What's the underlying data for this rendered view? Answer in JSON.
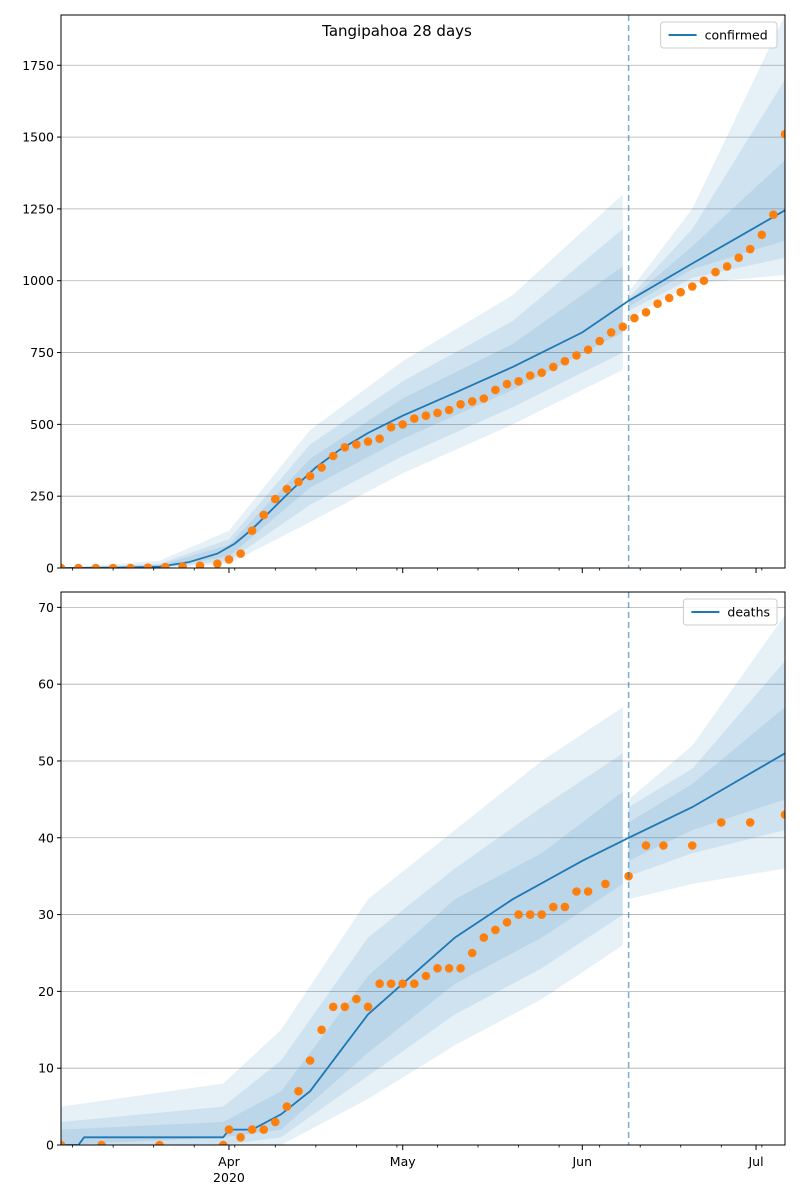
{
  "figure": {
    "title": "Tangipahoa 28 days"
  },
  "colors": {
    "model_line": "#1f77b4",
    "observed_points": "#ff7f0e",
    "band": "#1f77b4",
    "forecast_marker": "#1f77b4",
    "grid": "#b0b0b0"
  },
  "chart_data": [
    {
      "type": "line",
      "name": "confirmed-panel",
      "x_axis": {
        "type": "date",
        "range": [
          "2020-03-03",
          "2020-07-06"
        ],
        "major_ticks": [
          {
            "date": "2020-04-01",
            "label": "Apr"
          },
          {
            "date": "2020-05-01",
            "label": "May"
          },
          {
            "date": "2020-06-01",
            "label": "Jun"
          },
          {
            "date": "2020-07-01",
            "label": "Jul"
          }
        ],
        "year_label": "",
        "tick_labels_visible": false
      },
      "y_axis": {
        "range": [
          0,
          1925
        ],
        "ticks": [
          0,
          250,
          500,
          750,
          1000,
          1250,
          1500,
          1750
        ],
        "tick_labels": [
          "0",
          "250",
          "500",
          "750",
          "1000",
          "1250",
          "1500",
          "1750"
        ]
      },
      "grid": "horizontal",
      "legend": {
        "position": "top-right",
        "entries": [
          "confirmed"
        ]
      },
      "forecast_start": "2020-06-09",
      "series": [
        {
          "name": "confirmed",
          "kind": "line",
          "x": [
            "2020-03-03",
            "2020-03-13",
            "2020-03-20",
            "2020-03-25",
            "2020-03-30",
            "2020-04-02",
            "2020-04-05",
            "2020-04-08",
            "2020-04-12",
            "2020-04-16",
            "2020-04-20",
            "2020-04-25",
            "2020-05-01",
            "2020-05-10",
            "2020-05-20",
            "2020-06-01",
            "2020-06-09",
            "2020-06-20",
            "2020-07-06"
          ],
          "y": [
            0,
            1,
            5,
            20,
            50,
            85,
            135,
            195,
            275,
            350,
            410,
            470,
            530,
            610,
            700,
            820,
            930,
            1060,
            1245
          ]
        },
        {
          "name": "observed",
          "kind": "scatter",
          "x": [
            "2020-03-03",
            "2020-03-06",
            "2020-03-09",
            "2020-03-12",
            "2020-03-15",
            "2020-03-18",
            "2020-03-21",
            "2020-03-24",
            "2020-03-27",
            "2020-03-30",
            "2020-04-01",
            "2020-04-03",
            "2020-04-05",
            "2020-04-07",
            "2020-04-09",
            "2020-04-11",
            "2020-04-13",
            "2020-04-15",
            "2020-04-17",
            "2020-04-19",
            "2020-04-21",
            "2020-04-23",
            "2020-04-25",
            "2020-04-27",
            "2020-04-29",
            "2020-05-01",
            "2020-05-03",
            "2020-05-05",
            "2020-05-07",
            "2020-05-09",
            "2020-05-11",
            "2020-05-13",
            "2020-05-15",
            "2020-05-17",
            "2020-05-19",
            "2020-05-21",
            "2020-05-23",
            "2020-05-25",
            "2020-05-27",
            "2020-05-29",
            "2020-05-31",
            "2020-06-02",
            "2020-06-04",
            "2020-06-06",
            "2020-06-08",
            "2020-06-10",
            "2020-06-12",
            "2020-06-14",
            "2020-06-16",
            "2020-06-18",
            "2020-06-20",
            "2020-06-22",
            "2020-06-24",
            "2020-06-26",
            "2020-06-28",
            "2020-06-30",
            "2020-07-02",
            "2020-07-04",
            "2020-07-06"
          ],
          "y": [
            0,
            0,
            0,
            0,
            0,
            1,
            3,
            5,
            8,
            15,
            30,
            50,
            130,
            185,
            240,
            275,
            300,
            320,
            350,
            390,
            420,
            430,
            440,
            450,
            490,
            500,
            520,
            530,
            540,
            550,
            570,
            580,
            590,
            620,
            640,
            650,
            670,
            680,
            700,
            720,
            740,
            760,
            790,
            820,
            840,
            870,
            890,
            920,
            940,
            960,
            980,
            1000,
            1030,
            1050,
            1080,
            1110,
            1160,
            1230,
            1510
          ]
        }
      ],
      "bands": [
        {
          "name": "band-outer",
          "x": [
            "2020-03-03",
            "2020-03-20",
            "2020-04-01",
            "2020-04-15",
            "2020-05-01",
            "2020-05-20",
            "2020-06-08",
            "2020-06-09",
            "2020-06-20",
            "2020-07-06"
          ],
          "low": [
            0,
            0,
            15,
            160,
            330,
            500,
            690,
            870,
            990,
            1020
          ],
          "high": [
            0,
            25,
            130,
            480,
            720,
            950,
            1300,
            960,
            1250,
            1925
          ]
        },
        {
          "name": "band-middle",
          "x": [
            "2020-03-03",
            "2020-03-20",
            "2020-04-01",
            "2020-04-15",
            "2020-05-01",
            "2020-05-20",
            "2020-06-08",
            "2020-06-09",
            "2020-06-20",
            "2020-07-06"
          ],
          "low": [
            0,
            1,
            25,
            220,
            390,
            560,
            750,
            895,
            1010,
            1080
          ],
          "high": [
            0,
            15,
            100,
            430,
            650,
            860,
            1180,
            940,
            1180,
            1700
          ]
        },
        {
          "name": "band-inner",
          "x": [
            "2020-03-03",
            "2020-03-20",
            "2020-04-01",
            "2020-04-15",
            "2020-05-01",
            "2020-05-20",
            "2020-06-08",
            "2020-06-09",
            "2020-06-20",
            "2020-07-06"
          ],
          "low": [
            0,
            2,
            40,
            280,
            450,
            620,
            820,
            910,
            1040,
            1140
          ],
          "high": [
            0,
            10,
            80,
            380,
            590,
            780,
            1050,
            930,
            1120,
            1420
          ]
        }
      ]
    },
    {
      "type": "line",
      "name": "deaths-panel",
      "x_axis": {
        "type": "date",
        "range": [
          "2020-03-03",
          "2020-07-06"
        ],
        "major_ticks": [
          {
            "date": "2020-04-01",
            "label": "Apr"
          },
          {
            "date": "2020-05-01",
            "label": "May"
          },
          {
            "date": "2020-06-01",
            "label": "Jun"
          },
          {
            "date": "2020-07-01",
            "label": "Jul"
          }
        ],
        "year_label": "2020",
        "tick_labels_visible": true
      },
      "y_axis": {
        "range": [
          0,
          72
        ],
        "ticks": [
          0,
          10,
          20,
          30,
          40,
          50,
          60,
          70
        ],
        "tick_labels": [
          "0",
          "10",
          "20",
          "30",
          "40",
          "50",
          "60",
          "70"
        ]
      },
      "grid": "horizontal",
      "legend": {
        "position": "top-right",
        "entries": [
          "deaths"
        ]
      },
      "forecast_start": "2020-06-09",
      "series": [
        {
          "name": "deaths",
          "kind": "line",
          "x": [
            "2020-03-03",
            "2020-03-06",
            "2020-03-07",
            "2020-03-31",
            "2020-04-01",
            "2020-04-05",
            "2020-04-10",
            "2020-04-15",
            "2020-04-20",
            "2020-04-25",
            "2020-05-01",
            "2020-05-10",
            "2020-05-20",
            "2020-06-01",
            "2020-06-09",
            "2020-06-20",
            "2020-07-06"
          ],
          "y": [
            0,
            0,
            1,
            1,
            2,
            2,
            4,
            7,
            12,
            17,
            21,
            27,
            32,
            37,
            40,
            44,
            51
          ]
        },
        {
          "name": "observed",
          "kind": "scatter",
          "x": [
            "2020-03-03",
            "2020-03-10",
            "2020-03-20",
            "2020-03-31",
            "2020-04-01",
            "2020-04-03",
            "2020-04-05",
            "2020-04-07",
            "2020-04-09",
            "2020-04-11",
            "2020-04-13",
            "2020-04-15",
            "2020-04-17",
            "2020-04-19",
            "2020-04-21",
            "2020-04-23",
            "2020-04-25",
            "2020-04-27",
            "2020-04-29",
            "2020-05-01",
            "2020-05-03",
            "2020-05-05",
            "2020-05-07",
            "2020-05-09",
            "2020-05-11",
            "2020-05-13",
            "2020-05-15",
            "2020-05-17",
            "2020-05-19",
            "2020-05-21",
            "2020-05-23",
            "2020-05-25",
            "2020-05-27",
            "2020-05-29",
            "2020-05-31",
            "2020-06-02",
            "2020-06-05",
            "2020-06-09",
            "2020-06-12",
            "2020-06-15",
            "2020-06-20",
            "2020-06-25",
            "2020-06-30",
            "2020-07-06"
          ],
          "y": [
            0,
            0,
            0,
            0,
            2,
            1,
            2,
            2,
            3,
            5,
            7,
            11,
            15,
            18,
            18,
            19,
            18,
            21,
            21,
            21,
            21,
            22,
            23,
            23,
            23,
            25,
            27,
            28,
            29,
            30,
            30,
            30,
            31,
            31,
            33,
            33,
            34,
            35,
            39,
            39,
            39,
            42,
            42,
            43
          ]
        }
      ],
      "bands": [
        {
          "name": "band-outer",
          "x": [
            "2020-03-03",
            "2020-03-31",
            "2020-04-10",
            "2020-04-25",
            "2020-05-10",
            "2020-05-25",
            "2020-06-08",
            "2020-06-09",
            "2020-06-20",
            "2020-07-06"
          ],
          "low": [
            0,
            0,
            0,
            6,
            13,
            19,
            26,
            32,
            34,
            36
          ],
          "high": [
            5,
            8,
            15,
            32,
            41,
            50,
            57,
            45,
            52,
            69
          ]
        },
        {
          "name": "band-middle",
          "x": [
            "2020-03-03",
            "2020-03-31",
            "2020-04-10",
            "2020-04-25",
            "2020-05-10",
            "2020-05-25",
            "2020-06-08",
            "2020-06-09",
            "2020-06-20",
            "2020-07-06"
          ],
          "low": [
            0,
            0,
            1,
            9,
            17,
            23,
            30,
            35,
            38,
            41
          ],
          "high": [
            3,
            5,
            11,
            27,
            36,
            44,
            51,
            44,
            49,
            63
          ]
        },
        {
          "name": "band-inner",
          "x": [
            "2020-03-03",
            "2020-03-31",
            "2020-04-10",
            "2020-04-25",
            "2020-05-10",
            "2020-05-25",
            "2020-06-08",
            "2020-06-09",
            "2020-06-20",
            "2020-07-06"
          ],
          "low": [
            0,
            1,
            2,
            12,
            21,
            27,
            34,
            37,
            41,
            45
          ],
          "high": [
            2,
            3,
            7,
            22,
            32,
            38,
            46,
            42,
            47,
            57
          ]
        }
      ]
    }
  ]
}
